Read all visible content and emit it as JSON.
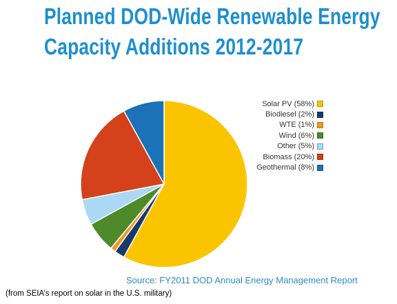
{
  "title": {
    "line1": "Planned DOD-Wide Renewable Energy",
    "line2": "Capacity Additions 2012-2017"
  },
  "source": "Source: FY2011 DOD Annual Energy Management Report",
  "caption": "(from SEIA’s report on solar in the U.S. military)",
  "chart_data": {
    "type": "pie",
    "title": "Planned DOD-Wide Renewable Energy Capacity Additions 2012-2017",
    "legend_position": "right",
    "categories": [
      "Solar PV",
      "Biodiesel",
      "WTE",
      "Wind",
      "Other",
      "Biomass",
      "Geothermal"
    ],
    "values": [
      58,
      2,
      1,
      6,
      5,
      20,
      8
    ],
    "unit": "%",
    "legend_labels": [
      "Solar PV (58%)",
      "Biodiesel (2%)",
      "WTE (1%)",
      "Wind (6%)",
      "Other (5%)",
      "Biomass (20%)",
      "Geothermal (8%)"
    ],
    "colors": [
      "#fbc400",
      "#163a6b",
      "#f09a24",
      "#4f8a2a",
      "#aad8f5",
      "#d4411a",
      "#1b72b6"
    ],
    "start_angle_deg": 0,
    "direction": "clockwise"
  }
}
